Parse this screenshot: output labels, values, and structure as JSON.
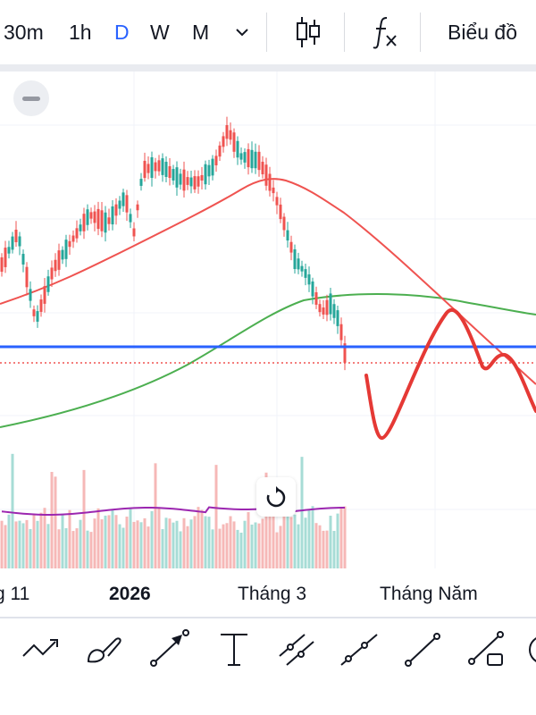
{
  "toolbar": {
    "intervals": [
      "30m",
      "1h",
      "D",
      "W",
      "M"
    ],
    "active_interval": "D",
    "chart_label": "Biểu đồ",
    "colors": {
      "active": "#2962ff",
      "text": "#131722"
    }
  },
  "chart_data": {
    "type": "candlestick",
    "x_tick_labels": [
      "g 11",
      "2026",
      "Tháng 3",
      "Tháng Năm"
    ],
    "horizontal_line_color": "#2962ff",
    "drawing_color": "#e53935",
    "ma_fast_color": "#ef5350",
    "ma_slow_color": "#4caf50",
    "volume_ma_color": "#9c27b0"
  },
  "drawing_tools": [
    "trend-line-icon",
    "brush-icon",
    "arrow-icon",
    "text-icon",
    "parallel-channel-icon",
    "ray-icon",
    "extended-line-icon",
    "info-line-icon",
    "more-tools-icon"
  ]
}
